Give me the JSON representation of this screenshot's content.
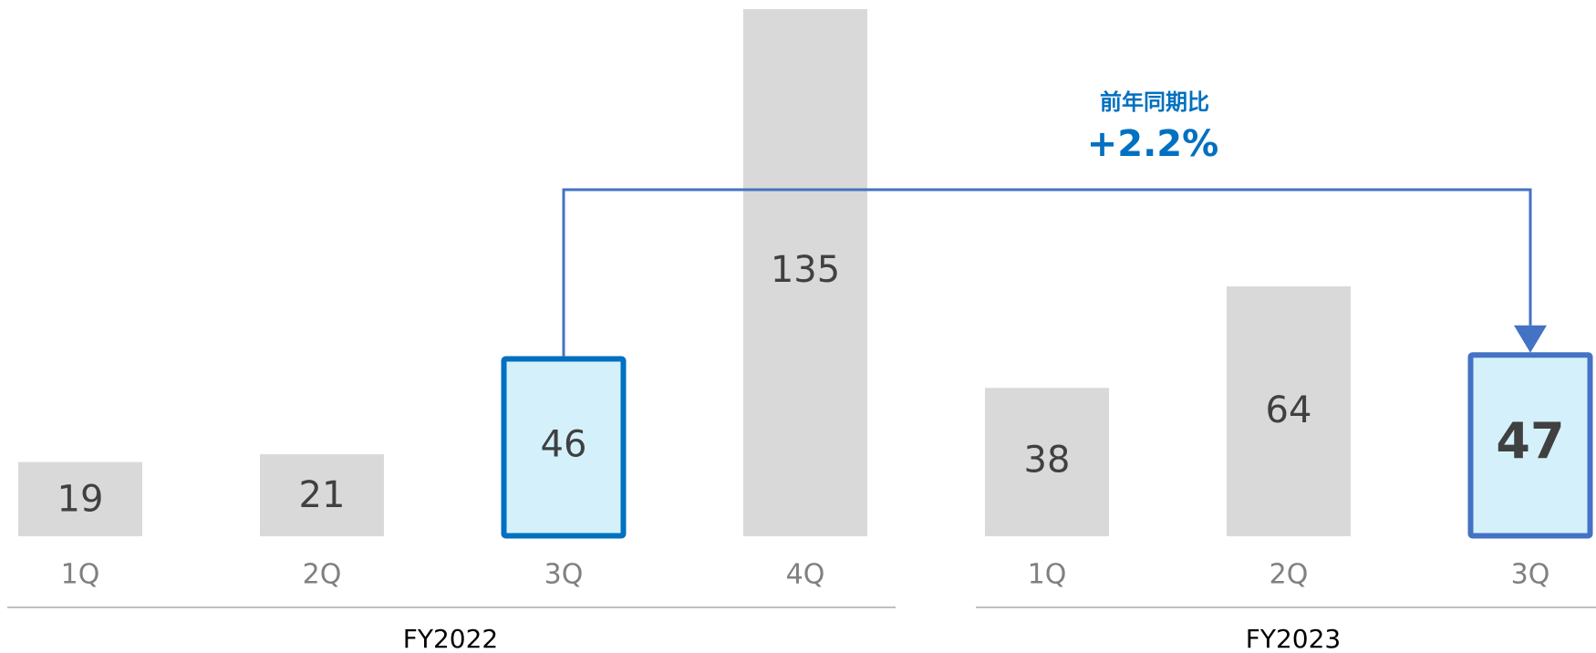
{
  "chart_data": {
    "type": "bar",
    "groups": [
      {
        "name": "FY2022",
        "categories": [
          "1Q",
          "2Q",
          "3Q",
          "4Q"
        ],
        "values": [
          19,
          21,
          46,
          135
        ]
      },
      {
        "name": "FY2023",
        "categories": [
          "1Q",
          "2Q",
          "3Q"
        ],
        "values": [
          38,
          64,
          47
        ]
      }
    ],
    "highlighted": [
      {
        "group": 0,
        "index": 2
      },
      {
        "group": 1,
        "index": 2
      }
    ],
    "annotation": {
      "title": "前年同期比",
      "value": "+2.2%"
    },
    "ylim": [
      0,
      135
    ],
    "grid": false,
    "legend": "none"
  },
  "colors": {
    "bar_default": "#d9d9d9",
    "bar_highlight_fill": "#d4f1fb",
    "fy2022_highlight_border": "#0070c0",
    "fy2023_highlight_border": "#4472c4",
    "arrow": "#4472c4",
    "annotation_text": "#0070c0",
    "bar_label": "#404040",
    "tick_label": "#808080",
    "axis_line": "#bfbfbf"
  }
}
